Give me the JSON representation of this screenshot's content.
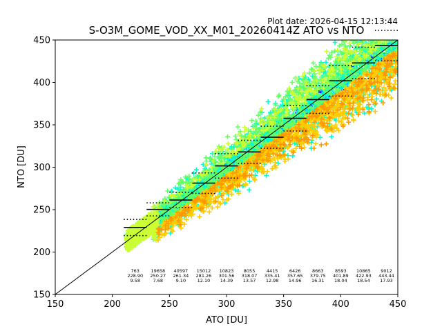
{
  "chart_data": {
    "type": "scatter",
    "title": "S-O3M_GOME_VOD_XX_M01_20260414Z ATO vs NTO",
    "subtitle": "Plot date: 2026-04-15 12:13:44",
    "xlabel": "ATO [DU]",
    "ylabel": "NTO [DU]",
    "xlim": [
      150,
      450
    ],
    "ylim": [
      150,
      450
    ],
    "xticks": [
      "150",
      "200",
      "250",
      "300",
      "350",
      "400",
      "450"
    ],
    "yticks": [
      "150",
      "200",
      "250",
      "300",
      "350",
      "400",
      "450"
    ],
    "grid": false,
    "reference_line": "1:1",
    "marker": "+",
    "colors": [
      "#0000ff",
      "#00aaff",
      "#00ffcc",
      "#66ff66",
      "#ccff33",
      "#ffcc00",
      "#ff9900"
    ],
    "bin_width": 20,
    "bins": [
      {
        "center": 220,
        "count": "763",
        "mean": "228.90",
        "std": "9.58"
      },
      {
        "center": 240,
        "count": "19658",
        "mean": "250.27",
        "std": "7.68"
      },
      {
        "center": 260,
        "count": "40597",
        "mean": "261.34",
        "std": "9.10"
      },
      {
        "center": 280,
        "count": "15012",
        "mean": "281.26",
        "std": "12.10"
      },
      {
        "center": 300,
        "count": "10823",
        "mean": "301.56",
        "std": "14.39"
      },
      {
        "center": 320,
        "count": "8055",
        "mean": "318.07",
        "std": "13.57"
      },
      {
        "center": 340,
        "count": "4415",
        "mean": "335.41",
        "std": "12.98"
      },
      {
        "center": 360,
        "count": "6426",
        "mean": "357.65",
        "std": "14.96"
      },
      {
        "center": 380,
        "count": "8663",
        "mean": "379.75",
        "std": "16.31"
      },
      {
        "center": 400,
        "count": "8593",
        "mean": "401.89",
        "std": "18.04"
      },
      {
        "center": 420,
        "count": "10865",
        "mean": "422.93",
        "std": "18.54"
      },
      {
        "center": 440,
        "count": "9012",
        "mean": "443.44",
        "std": "17.93"
      }
    ]
  }
}
